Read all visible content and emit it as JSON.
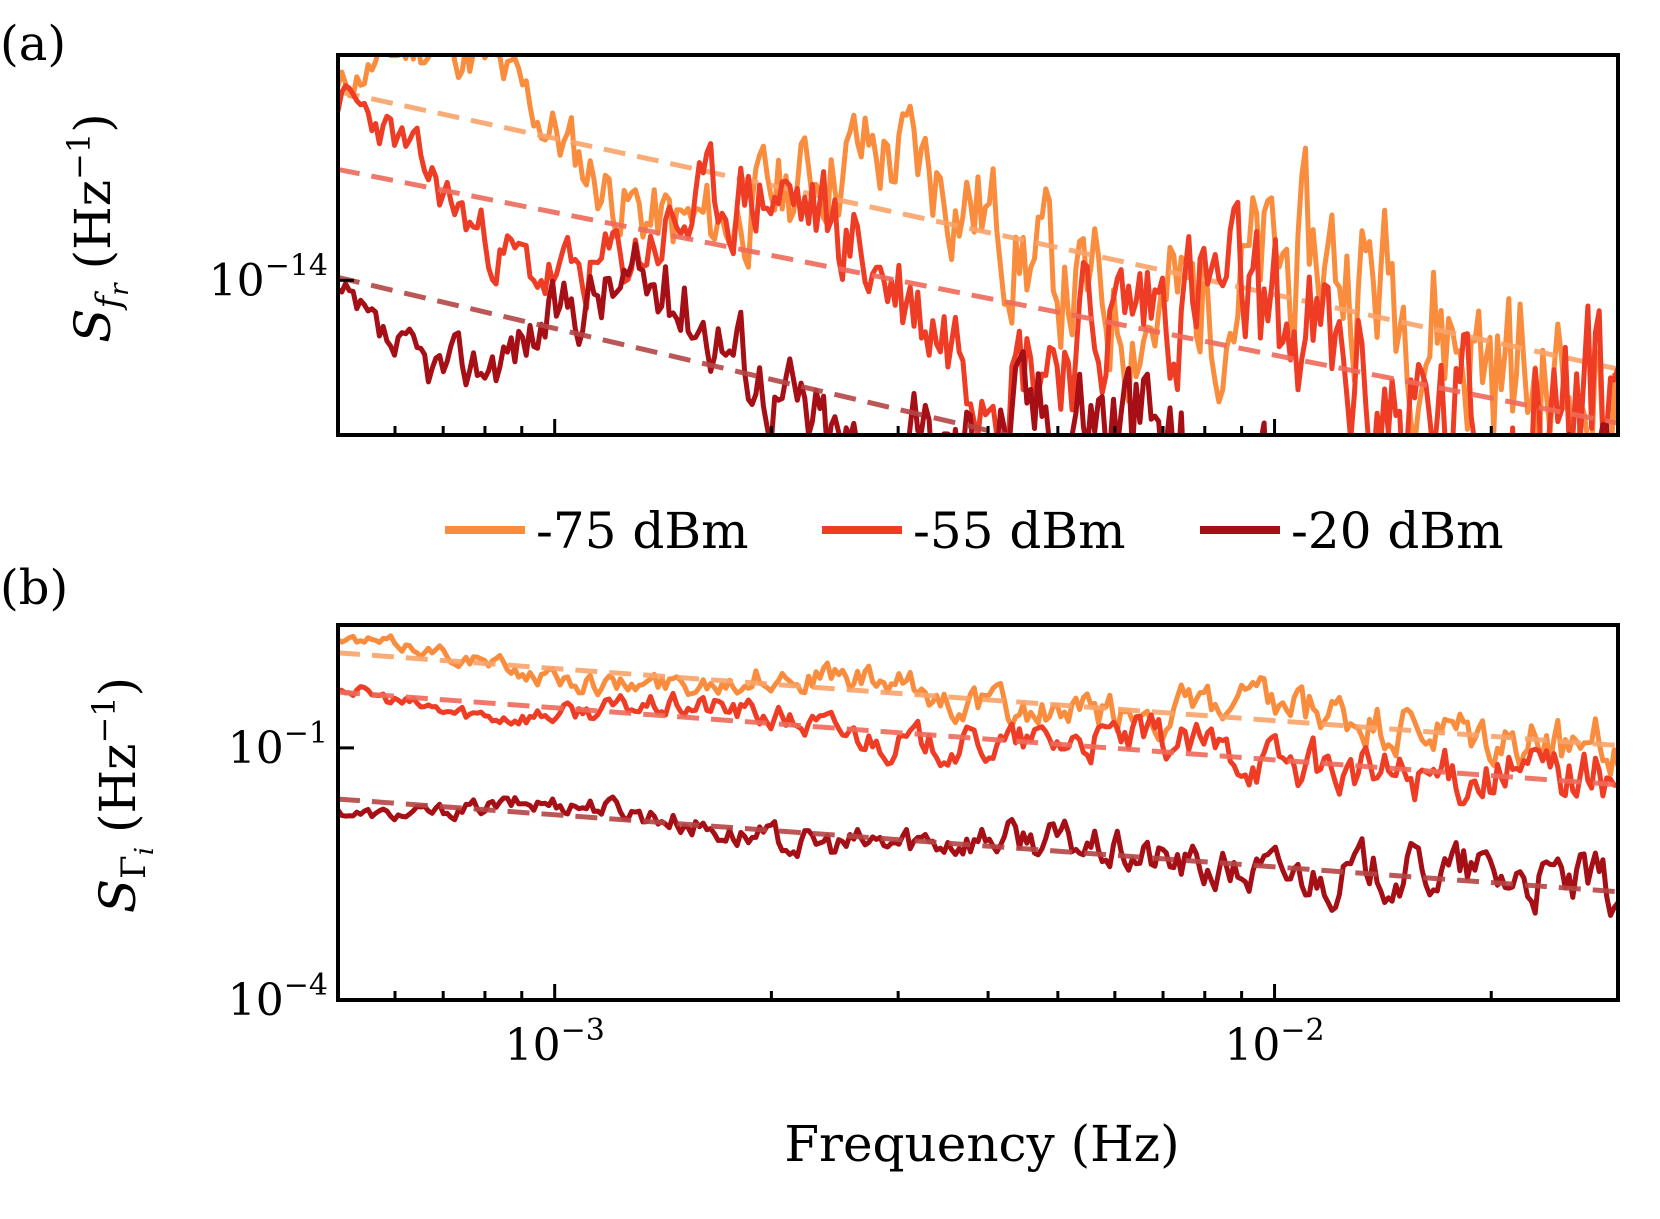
{
  "chart_data": [
    {
      "type": "line",
      "panel_label": "(a)",
      "xscale": "log",
      "yscale": "log",
      "xlim": [
        0.0005,
        0.03
      ],
      "ylim": [
        4.5e-15,
        3.2e-14
      ],
      "ylabel": {
        "base": "S",
        "sub": "f",
        "subsub": "r",
        "unit_open": "(Hz",
        "exp": "−1",
        "unit_close": ")"
      },
      "yticks": [
        {
          "value": 1e-14,
          "base": "10",
          "exp": "−14"
        }
      ],
      "xticks": [
        {
          "value": 0.001,
          "base": "10",
          "exp": "−3"
        },
        {
          "value": 0.01,
          "base": "10",
          "exp": "−2"
        }
      ],
      "show_x_tick_labels": false,
      "series": [
        {
          "name": "-75 dBm",
          "color": "#f98c3d",
          "fit_color": "#f9a46a",
          "amplitude": 2.08e-14,
          "exponent": -0.35,
          "noise": 0.3
        },
        {
          "name": "-55 dBm",
          "color": "#ef3c24",
          "fit_color": "#ef6a5a",
          "amplitude": 1.42e-14,
          "exponent": -0.32,
          "noise": 0.3
        },
        {
          "name": "-20 dBm",
          "color": "#a50f15",
          "fit_color": "#b54545",
          "amplitude": 7.8e-15,
          "exponent": -0.38,
          "noise": 0.3
        }
      ]
    },
    {
      "type": "line",
      "panel_label": "(b)",
      "xscale": "log",
      "yscale": "log",
      "xlim": [
        0.0005,
        0.03
      ],
      "ylim": [
        0.0001,
        2.9
      ],
      "ylabel": {
        "base": "S",
        "sub": "Γ",
        "subsub": "i",
        "unit_open": "(Hz",
        "exp": "−1",
        "unit_close": ")"
      },
      "yticks": [
        {
          "value": 0.1,
          "base": "10",
          "exp": "−1"
        },
        {
          "value": 0.0001,
          "base": "10",
          "exp": "−4"
        }
      ],
      "xticks": [
        {
          "value": 0.001,
          "base": "10",
          "exp": "−3"
        },
        {
          "value": 0.01,
          "base": "10",
          "exp": "−2"
        }
      ],
      "show_x_tick_labels": true,
      "xlabel": "Frequency (Hz)",
      "series": [
        {
          "name": "-75 dBm",
          "color": "#f98c3d",
          "fit_color": "#f9a46a",
          "amplitude": 0.88,
          "exponent": -0.62,
          "noise": 0.45
        },
        {
          "name": "-55 dBm",
          "color": "#ef3c24",
          "fit_color": "#ef6a5a",
          "amplitude": 0.3,
          "exponent": -0.62,
          "noise": 0.45
        },
        {
          "name": "-20 dBm",
          "color": "#a50f15",
          "fit_color": "#b54545",
          "amplitude": 0.016,
          "exponent": -0.62,
          "noise": 0.45
        }
      ]
    }
  ],
  "legend": [
    "-75 dBm",
    "-55 dBm",
    "-20 dBm"
  ]
}
